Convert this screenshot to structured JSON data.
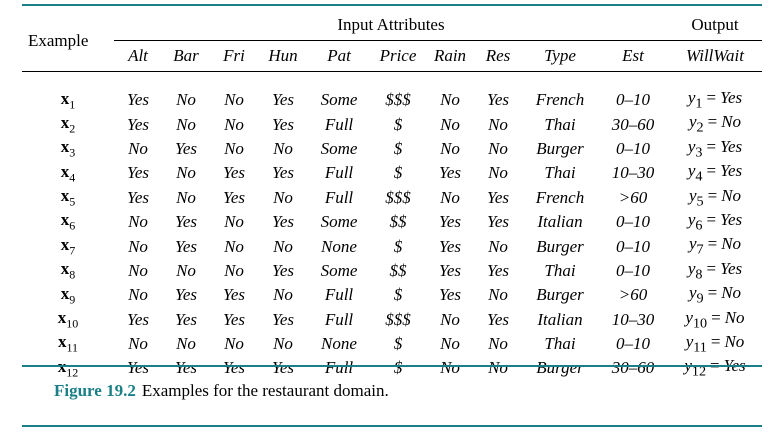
{
  "table": {
    "example_header": "Example",
    "input_group_header": "Input Attributes",
    "output_group_header": "Output",
    "attributes": [
      "Alt",
      "Bar",
      "Fri",
      "Hun",
      "Pat",
      "Price",
      "Rain",
      "Res",
      "Type",
      "Est"
    ],
    "output_attribute": "WillWait",
    "rows": [
      {
        "x": "x",
        "i": "1",
        "vals": [
          "Yes",
          "No",
          "No",
          "Yes",
          "Some",
          "$$$",
          "No",
          "Yes",
          "French",
          "0–10"
        ],
        "y": "y",
        "yi": "1",
        "ov": "Yes"
      },
      {
        "x": "x",
        "i": "2",
        "vals": [
          "Yes",
          "No",
          "No",
          "Yes",
          "Full",
          "$",
          "No",
          "No",
          "Thai",
          "30–60"
        ],
        "y": "y",
        "yi": "2",
        "ov": "No"
      },
      {
        "x": "x",
        "i": "3",
        "vals": [
          "No",
          "Yes",
          "No",
          "No",
          "Some",
          "$",
          "No",
          "No",
          "Burger",
          "0–10"
        ],
        "y": "y",
        "yi": "3",
        "ov": "Yes"
      },
      {
        "x": "x",
        "i": "4",
        "vals": [
          "Yes",
          "No",
          "Yes",
          "Yes",
          "Full",
          "$",
          "Yes",
          "No",
          "Thai",
          "10–30"
        ],
        "y": "y",
        "yi": "4",
        "ov": "Yes"
      },
      {
        "x": "x",
        "i": "5",
        "vals": [
          "Yes",
          "No",
          "Yes",
          "No",
          "Full",
          "$$$",
          "No",
          "Yes",
          "French",
          ">60"
        ],
        "y": "y",
        "yi": "5",
        "ov": "No"
      },
      {
        "x": "x",
        "i": "6",
        "vals": [
          "No",
          "Yes",
          "No",
          "Yes",
          "Some",
          "$$",
          "Yes",
          "Yes",
          "Italian",
          "0–10"
        ],
        "y": "y",
        "yi": "6",
        "ov": "Yes"
      },
      {
        "x": "x",
        "i": "7",
        "vals": [
          "No",
          "Yes",
          "No",
          "No",
          "None",
          "$",
          "Yes",
          "No",
          "Burger",
          "0–10"
        ],
        "y": "y",
        "yi": "7",
        "ov": "No"
      },
      {
        "x": "x",
        "i": "8",
        "vals": [
          "No",
          "No",
          "No",
          "Yes",
          "Some",
          "$$",
          "Yes",
          "Yes",
          "Thai",
          "0–10"
        ],
        "y": "y",
        "yi": "8",
        "ov": "Yes"
      },
      {
        "x": "x",
        "i": "9",
        "vals": [
          "No",
          "Yes",
          "Yes",
          "No",
          "Full",
          "$",
          "Yes",
          "No",
          "Burger",
          ">60"
        ],
        "y": "y",
        "yi": "9",
        "ov": "No"
      },
      {
        "x": "x",
        "i": "10",
        "vals": [
          "Yes",
          "Yes",
          "Yes",
          "Yes",
          "Full",
          "$$$",
          "No",
          "Yes",
          "Italian",
          "10–30"
        ],
        "y": "y",
        "yi": "10",
        "ov": "No"
      },
      {
        "x": "x",
        "i": "11",
        "vals": [
          "No",
          "No",
          "No",
          "No",
          "None",
          "$",
          "No",
          "No",
          "Thai",
          "0–10"
        ],
        "y": "y",
        "yi": "11",
        "ov": "No"
      },
      {
        "x": "x",
        "i": "12",
        "vals": [
          "Yes",
          "Yes",
          "Yes",
          "Yes",
          "Full",
          "$",
          "No",
          "No",
          "Burger",
          "30–60"
        ],
        "y": "y",
        "yi": "12",
        "ov": "Yes"
      }
    ],
    "equals_sign": "="
  },
  "caption": {
    "figure_label": "Figure 19.2",
    "text": "Examples for the restaurant domain."
  },
  "colors": {
    "accent": "#1a7f86"
  }
}
